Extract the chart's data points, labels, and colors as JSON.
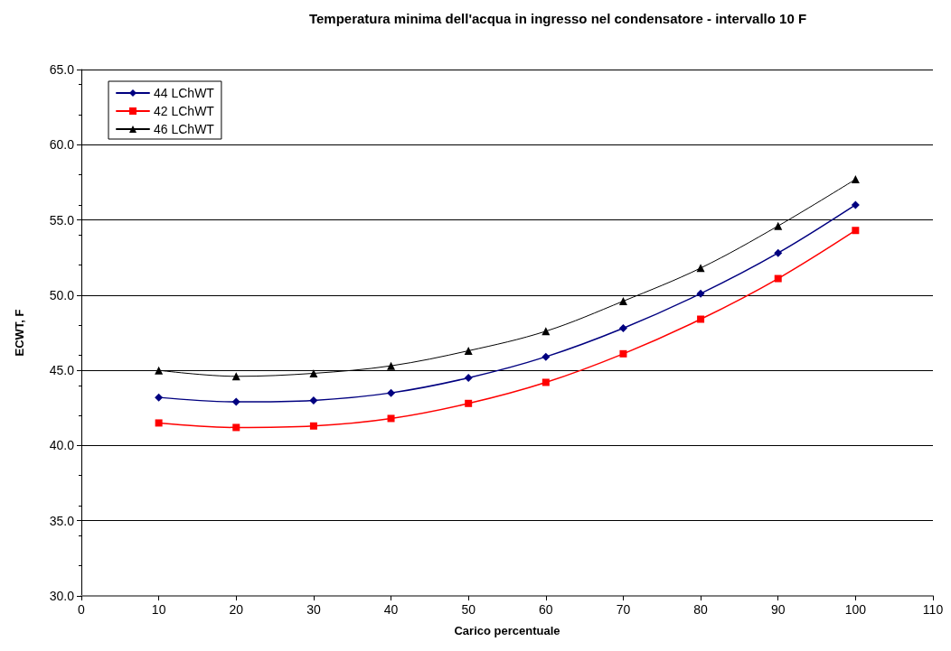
{
  "chart_data": {
    "type": "line",
    "title": "Temperatura minima dell'acqua in ingresso nel condensatore - intervallo 10 F",
    "xlabel": "Carico percentuale",
    "ylabel": "ECWT, F",
    "x": [
      10,
      20,
      30,
      40,
      50,
      60,
      70,
      80,
      90,
      100
    ],
    "series": [
      {
        "name": "44 LChWT",
        "color": "#000080",
        "marker": "diamond",
        "values": [
          43.2,
          42.9,
          43.0,
          43.5,
          44.5,
          45.9,
          47.8,
          50.1,
          52.8,
          56.0
        ]
      },
      {
        "name": "42 LChWT",
        "color": "#ff0000",
        "marker": "square",
        "values": [
          41.5,
          41.2,
          41.3,
          41.8,
          42.8,
          44.2,
          46.1,
          48.4,
          51.1,
          54.3
        ]
      },
      {
        "name": "46 LChWT",
        "color": "#000000",
        "marker": "triangle",
        "values": [
          45.0,
          44.6,
          44.8,
          45.3,
          46.3,
          47.6,
          49.6,
          51.8,
          54.6,
          57.7
        ]
      }
    ],
    "xlim": [
      0,
      110
    ],
    "xticks": [
      0,
      10,
      20,
      30,
      40,
      50,
      60,
      70,
      80,
      90,
      100,
      110
    ],
    "ylim": [
      30,
      65
    ],
    "yticks": [
      {
        "value": 30,
        "label": "30.0"
      },
      {
        "value": 35,
        "label": "35.0"
      },
      {
        "value": 40,
        "label": "40.0"
      },
      {
        "value": 45,
        "label": "45.0"
      },
      {
        "value": 50,
        "label": "50.0"
      },
      {
        "value": 55,
        "label": "55.0"
      },
      {
        "value": 60,
        "label": "60.0"
      },
      {
        "value": 65,
        "label": "65.0"
      }
    ],
    "grid": "y",
    "legend": "top left"
  }
}
